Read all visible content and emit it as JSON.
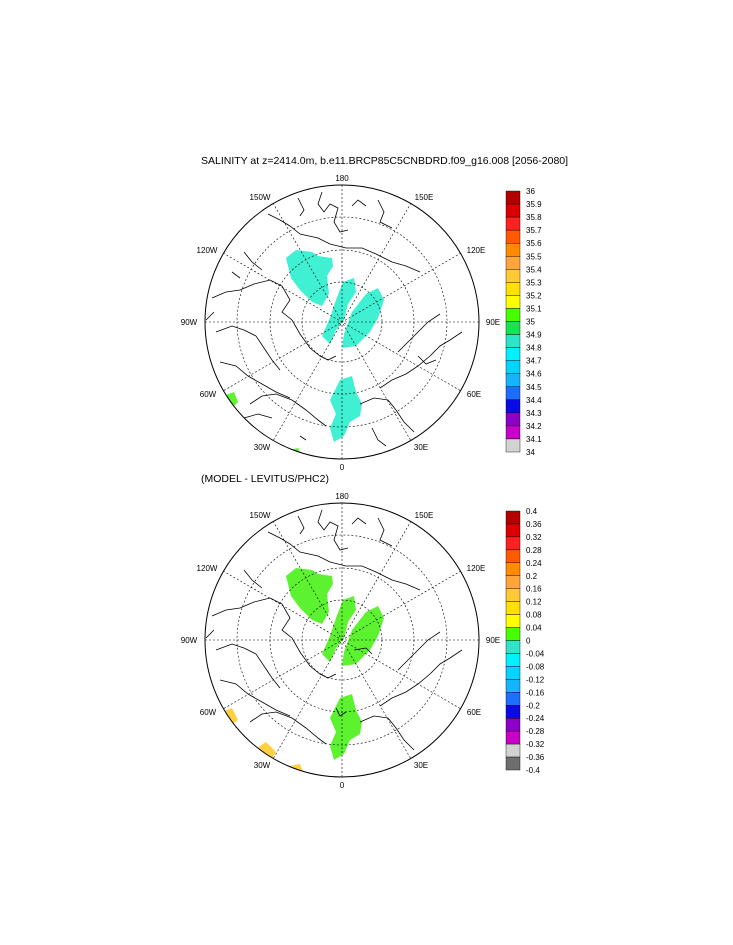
{
  "top_panel": {
    "title": "SALINITY at z=2414.0m, b.e11.BRCP85C5CNBDRD.f09_g16.008 [2056-2080]",
    "meridian_labels": {
      "m180": "180",
      "m150w": "150W",
      "m150e": "150E",
      "m120w": "120W",
      "m120e": "120E",
      "m90w": "90W",
      "m90e": "90E",
      "m60w": "60W",
      "m60e": "60E",
      "m30w": "30W",
      "m30e": "30E",
      "m0": "0"
    },
    "colorbar": {
      "labels": [
        "36",
        "35.9",
        "35.8",
        "35.7",
        "35.6",
        "35.5",
        "35.4",
        "35.3",
        "35.2",
        "35.1",
        "35",
        "34.9",
        "34.8",
        "34.7",
        "34.6",
        "34.5",
        "34.4",
        "34.3",
        "34.2",
        "34.1",
        "34"
      ],
      "colors": [
        "#b40000",
        "#dc0000",
        "#ff2020",
        "#ff5a00",
        "#ff8c00",
        "#ffa53c",
        "#ffc837",
        "#ffe000",
        "#ffff00",
        "#48ff00",
        "#18e450",
        "#2de6c8",
        "#00f0ff",
        "#00d4ff",
        "#14b4ff",
        "#1e6eff",
        "#0a0ae6",
        "#8c00c8",
        "#c800c8",
        "#d2d2d2"
      ],
      "value_range": [
        34,
        36
      ]
    },
    "highlight_color": "#3ff0d2",
    "edge_color": "#3ff0d2"
  },
  "bottom_panel": {
    "title": "(MODEL - LEVITUS/PHC2)",
    "meridian_labels": {
      "m180": "180",
      "m150w": "150W",
      "m150e": "150E",
      "m120w": "120W",
      "m120e": "120E",
      "m90w": "90W",
      "m90e": "90E",
      "m60w": "60W",
      "m60e": "60E",
      "m30w": "30W",
      "m30e": "30E",
      "m0": "0"
    },
    "colorbar": {
      "labels": [
        "0.4",
        "0.36",
        "0.32",
        "0.28",
        "0.24",
        "0.2",
        "0.16",
        "0.12",
        "0.08",
        "0.04",
        "0",
        "-0.04",
        "-0.08",
        "-0.12",
        "-0.16",
        "-0.2",
        "-0.24",
        "-0.28",
        "-0.32",
        "-0.36",
        "-0.4"
      ],
      "colors": [
        "#b40000",
        "#dc0000",
        "#ff2020",
        "#ff5a00",
        "#ff8c00",
        "#ffa53c",
        "#ffc837",
        "#ffe000",
        "#ffff00",
        "#48ff00",
        "#2de6c8",
        "#00f0ff",
        "#00d4ff",
        "#14b4ff",
        "#1e6eff",
        "#0a0ae6",
        "#8c00c8",
        "#c800c8",
        "#d2d2d2",
        "#6e6e6e"
      ],
      "value_range": [
        -0.4,
        0.4
      ]
    },
    "highlight_color": "#5cf230",
    "edge_color": "#ffd040"
  }
}
